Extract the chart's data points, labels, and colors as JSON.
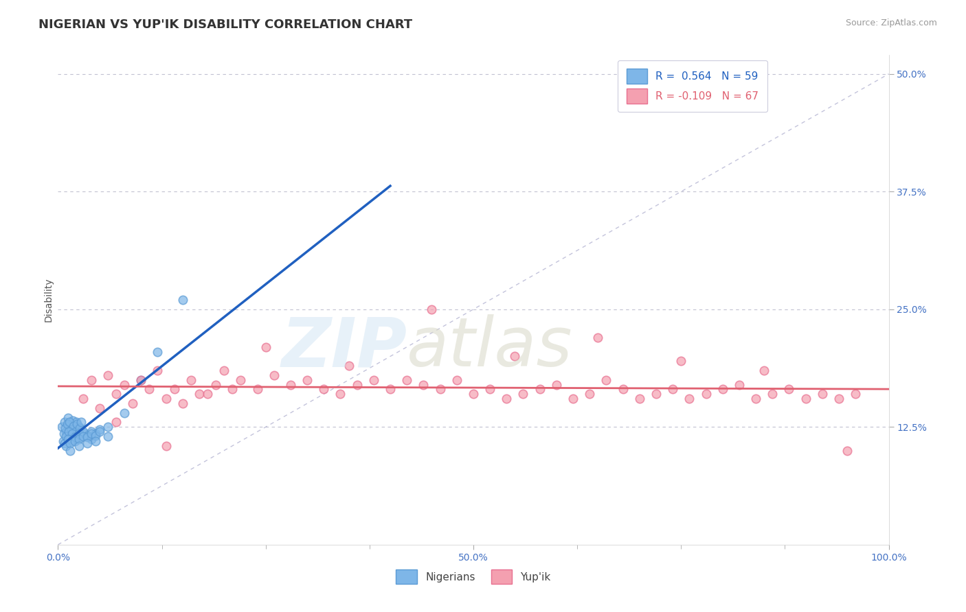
{
  "title": "NIGERIAN VS YUP'IK DISABILITY CORRELATION CHART",
  "source": "Source: ZipAtlas.com",
  "ylabel": "Disability",
  "xlim": [
    0,
    1.0
  ],
  "ylim": [
    0.0,
    0.52
  ],
  "blue_color": "#7EB6E8",
  "pink_color": "#F4A0B0",
  "blue_edge": "#5B9BD5",
  "pink_edge": "#E87090",
  "line_blue": "#2060C0",
  "line_pink": "#E06070",
  "diag_color": "#BBBBCC",
  "grid_color": "#BBBBCC",
  "r_nigerian": 0.564,
  "n_nigerian": 59,
  "r_yupik": -0.109,
  "n_yupik": 67,
  "nig_x": [
    0.005,
    0.008,
    0.01,
    0.012,
    0.013,
    0.015,
    0.018,
    0.02,
    0.022,
    0.025,
    0.007,
    0.009,
    0.011,
    0.014,
    0.016,
    0.019,
    0.021,
    0.023,
    0.026,
    0.028,
    0.006,
    0.01,
    0.013,
    0.017,
    0.02,
    0.024,
    0.028,
    0.032,
    0.036,
    0.04,
    0.008,
    0.012,
    0.016,
    0.02,
    0.025,
    0.03,
    0.035,
    0.04,
    0.045,
    0.05,
    0.01,
    0.015,
    0.02,
    0.025,
    0.03,
    0.035,
    0.04,
    0.045,
    0.05,
    0.06,
    0.015,
    0.025,
    0.035,
    0.045,
    0.06,
    0.08,
    0.1,
    0.12,
    0.15
  ],
  "nig_y": [
    0.125,
    0.13,
    0.12,
    0.135,
    0.128,
    0.122,
    0.132,
    0.126,
    0.13,
    0.125,
    0.118,
    0.124,
    0.128,
    0.13,
    0.122,
    0.126,
    0.12,
    0.128,
    0.124,
    0.13,
    0.11,
    0.115,
    0.12,
    0.118,
    0.112,
    0.116,
    0.114,
    0.118,
    0.116,
    0.12,
    0.108,
    0.112,
    0.11,
    0.114,
    0.118,
    0.12,
    0.116,
    0.112,
    0.118,
    0.122,
    0.105,
    0.108,
    0.11,
    0.112,
    0.115,
    0.114,
    0.118,
    0.116,
    0.12,
    0.125,
    0.1,
    0.105,
    0.108,
    0.11,
    0.115,
    0.14,
    0.175,
    0.205,
    0.26
  ],
  "yup_x": [
    0.03,
    0.05,
    0.07,
    0.09,
    0.11,
    0.13,
    0.15,
    0.17,
    0.19,
    0.21,
    0.04,
    0.06,
    0.08,
    0.1,
    0.12,
    0.14,
    0.16,
    0.18,
    0.2,
    0.22,
    0.24,
    0.26,
    0.28,
    0.3,
    0.32,
    0.34,
    0.36,
    0.38,
    0.4,
    0.42,
    0.44,
    0.46,
    0.48,
    0.5,
    0.52,
    0.54,
    0.56,
    0.58,
    0.6,
    0.62,
    0.64,
    0.66,
    0.68,
    0.7,
    0.72,
    0.74,
    0.76,
    0.78,
    0.8,
    0.82,
    0.84,
    0.86,
    0.88,
    0.9,
    0.92,
    0.94,
    0.96,
    0.25,
    0.35,
    0.45,
    0.55,
    0.65,
    0.75,
    0.85,
    0.95,
    0.07,
    0.13
  ],
  "yup_y": [
    0.155,
    0.145,
    0.16,
    0.15,
    0.165,
    0.155,
    0.15,
    0.16,
    0.17,
    0.165,
    0.175,
    0.18,
    0.17,
    0.175,
    0.185,
    0.165,
    0.175,
    0.16,
    0.185,
    0.175,
    0.165,
    0.18,
    0.17,
    0.175,
    0.165,
    0.16,
    0.17,
    0.175,
    0.165,
    0.175,
    0.17,
    0.165,
    0.175,
    0.16,
    0.165,
    0.155,
    0.16,
    0.165,
    0.17,
    0.155,
    0.16,
    0.175,
    0.165,
    0.155,
    0.16,
    0.165,
    0.155,
    0.16,
    0.165,
    0.17,
    0.155,
    0.16,
    0.165,
    0.155,
    0.16,
    0.155,
    0.16,
    0.21,
    0.19,
    0.25,
    0.2,
    0.22,
    0.195,
    0.185,
    0.1,
    0.13,
    0.105
  ]
}
